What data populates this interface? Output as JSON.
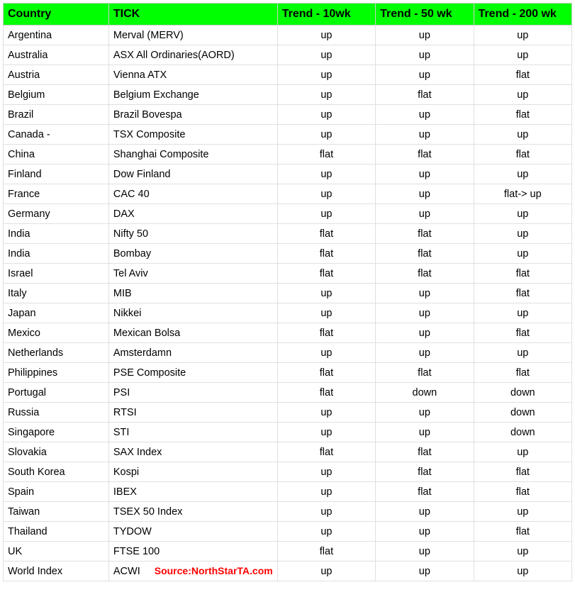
{
  "table": {
    "header_bg_color": "#00ff00",
    "border_color": "#cccccc",
    "row_border_color": "#e0e0e0",
    "text_color": "#000000",
    "source_color": "#ff0000",
    "columns": [
      "Country",
      "TICK",
      "Trend - 10wk",
      "Trend - 50 wk",
      "Trend - 200 wk"
    ],
    "rows": [
      {
        "country": "Argentina",
        "tick": "Merval (MERV)",
        "t10": "up",
        "t50": "up",
        "t200": "up"
      },
      {
        "country": "Australia",
        "tick": "ASX All Ordinaries(AORD)",
        "t10": "up",
        "t50": "up",
        "t200": "up"
      },
      {
        "country": "Austria",
        "tick": "Vienna ATX",
        "t10": "up",
        "t50": "up",
        "t200": "flat"
      },
      {
        "country": "Belgium",
        "tick": "Belgium Exchange",
        "t10": "up",
        "t50": "flat",
        "t200": "up"
      },
      {
        "country": "Brazil",
        "tick": "Brazil Bovespa",
        "t10": "up",
        "t50": "up",
        "t200": "flat"
      },
      {
        "country": "Canada -",
        "tick": "TSX Composite",
        "t10": "up",
        "t50": "up",
        "t200": "up"
      },
      {
        "country": "China",
        "tick": "Shanghai Composite",
        "t10": "flat",
        "t50": "flat",
        "t200": "flat"
      },
      {
        "country": "Finland",
        "tick": "Dow Finland",
        "t10": "up",
        "t50": "up",
        "t200": "up"
      },
      {
        "country": "France",
        "tick": "CAC 40",
        "t10": "up",
        "t50": "up",
        "t200": "flat-> up"
      },
      {
        "country": "Germany",
        "tick": "DAX",
        "t10": "up",
        "t50": "up",
        "t200": "up"
      },
      {
        "country": "India",
        "tick": "Nifty 50",
        "t10": "flat",
        "t50": "flat",
        "t200": "up"
      },
      {
        "country": "India",
        "tick": "Bombay",
        "t10": "flat",
        "t50": "flat",
        "t200": "up"
      },
      {
        "country": "Israel",
        "tick": "Tel Aviv",
        "t10": "flat",
        "t50": "flat",
        "t200": "flat"
      },
      {
        "country": "Italy",
        "tick": "MIB",
        "t10": "up",
        "t50": "up",
        "t200": "flat"
      },
      {
        "country": "Japan",
        "tick": "Nikkei",
        "t10": "up",
        "t50": "up",
        "t200": "up"
      },
      {
        "country": "Mexico",
        "tick": "Mexican Bolsa",
        "t10": "flat",
        "t50": "up",
        "t200": "flat"
      },
      {
        "country": "Netherlands",
        "tick": "Amsterdamn",
        "t10": "up",
        "t50": "up",
        "t200": "up"
      },
      {
        "country": "Philippines",
        "tick": "PSE Composite",
        "t10": "flat",
        "t50": "flat",
        "t200": "flat"
      },
      {
        "country": "Portugal",
        "tick": "PSI",
        "t10": "flat",
        "t50": "down",
        "t200": "down"
      },
      {
        "country": "Russia",
        "tick": "RTSI",
        "t10": "up",
        "t50": "up",
        "t200": "down"
      },
      {
        "country": "Singapore",
        "tick": "STI",
        "t10": "up",
        "t50": "up",
        "t200": "down"
      },
      {
        "country": "Slovakia",
        "tick": "SAX Index",
        "t10": "flat",
        "t50": "flat",
        "t200": "up"
      },
      {
        "country": "South Korea",
        "tick": "Kospi",
        "t10": "up",
        "t50": "flat",
        "t200": "flat"
      },
      {
        "country": "Spain",
        "tick": "IBEX",
        "t10": "up",
        "t50": "flat",
        "t200": "flat"
      },
      {
        "country": "Taiwan",
        "tick": "TSEX 50 Index",
        "t10": "up",
        "t50": "up",
        "t200": "up"
      },
      {
        "country": "Thailand",
        "tick": "TYDOW",
        "t10": "up",
        "t50": "up",
        "t200": "flat"
      },
      {
        "country": "UK",
        "tick": "FTSE 100",
        "t10": "flat",
        "t50": "up",
        "t200": "up"
      },
      {
        "country": "World Index",
        "tick": "ACWI",
        "t10": "up",
        "t50": "up",
        "t200": "up",
        "has_source": true
      }
    ],
    "source_label": "Source:NorthStarTA.com"
  }
}
